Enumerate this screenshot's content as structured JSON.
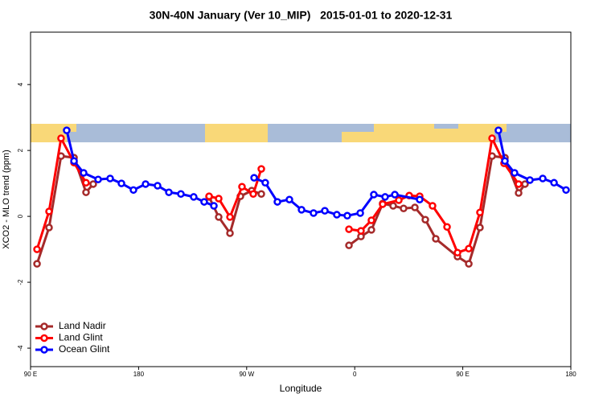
{
  "chart_data": {
    "type": "line",
    "title": "30N-40N January (Ver 10_MIP)   2015-01-01 to 2020-12-31",
    "x_label": "Longitude",
    "y_label": "XCO2 - MLO trend (ppm)",
    "xlim": [
      90,
      540
    ],
    "ylim": [
      -4.56,
      5.59
    ],
    "xticks": [
      {
        "value": 90,
        "label": "90 E"
      },
      180,
      {
        "value": 270,
        "label": "90 W"
      },
      {
        "value": 360,
        "label": "0"
      },
      {
        "value": 450,
        "label": "90 E"
      },
      {
        "value": 540,
        "label": "180"
      }
    ],
    "yticks": [
      -4,
      -2,
      0,
      2,
      4
    ],
    "legend": "bottom-left",
    "series": [
      {
        "name": "Land Nadir",
        "color": "#a52a2a",
        "x": [
          95.4,
          105.4,
          115.4,
          126.2,
          136.2,
          142.2,
          null,
          238.7,
          246.7,
          256.1,
          264.8,
          274.2,
          282.2,
          null,
          355.2,
          365.2,
          373.9,
          383.3,
          392.0,
          400.7,
          410.1,
          418.8,
          427.5,
          445.6,
          455.0,
          464.3,
          474.4,
          485.1,
          496.5,
          501.8
        ],
        "values": [
          -1.44,
          -0.34,
          1.83,
          1.78,
          0.73,
          0.98,
          null,
          0.59,
          -0.02,
          -0.51,
          0.61,
          0.78,
          0.68,
          null,
          -0.88,
          -0.61,
          -0.41,
          0.39,
          0.32,
          0.24,
          0.27,
          -0.1,
          -0.68,
          -1.22,
          -1.44,
          -0.34,
          1.83,
          1.78,
          0.71,
          0.98
        ]
      },
      {
        "name": "Land Glint",
        "color": "#ff0000",
        "x": [
          95.4,
          105.4,
          115.4,
          126.2,
          136.2,
          null,
          238.7,
          246.7,
          256.1,
          266.1,
          275.5,
          282.2,
          null,
          355.2,
          365.2,
          373.9,
          383.3,
          396.7,
          405.4,
          414.1,
          424.8,
          436.9,
          445.6,
          455.0,
          464.3,
          474.4,
          484.4,
          496.5
        ],
        "values": [
          -1.0,
          0.15,
          2.37,
          1.63,
          1.02,
          null,
          0.61,
          0.54,
          -0.02,
          0.9,
          0.68,
          1.44,
          null,
          -0.39,
          -0.44,
          -0.12,
          0.37,
          0.49,
          0.63,
          0.61,
          0.32,
          -0.32,
          -1.1,
          -0.98,
          0.12,
          2.37,
          1.61,
          0.98
        ]
      },
      {
        "name": "Ocean Glint",
        "color": "#0000ff",
        "x": [
          120.1,
          126.2,
          134.2,
          146.3,
          156.3,
          165.7,
          175.7,
          185.8,
          195.8,
          205.2,
          215.2,
          225.9,
          234.6,
          242.7,
          null,
          276.2,
          285.5,
          295.6,
          305.6,
          315.7,
          325.7,
          335.1,
          345.1,
          353.8,
          364.6,
          375.9,
          385.3,
          393.4,
          414.1,
          null,
          479.7,
          485.1,
          493.1,
          505.9,
          516.6,
          526.0,
          536.0
        ],
        "values": [
          2.61,
          1.68,
          1.32,
          1.12,
          1.15,
          1.0,
          0.8,
          0.98,
          0.93,
          0.73,
          0.68,
          0.59,
          0.44,
          0.32,
          null,
          1.17,
          1.02,
          0.44,
          0.51,
          0.2,
          0.1,
          0.17,
          0.05,
          0.02,
          0.1,
          0.66,
          0.59,
          0.66,
          0.51,
          null,
          2.61,
          1.68,
          1.32,
          1.1,
          1.15,
          1.02,
          0.8
        ]
      }
    ]
  }
}
